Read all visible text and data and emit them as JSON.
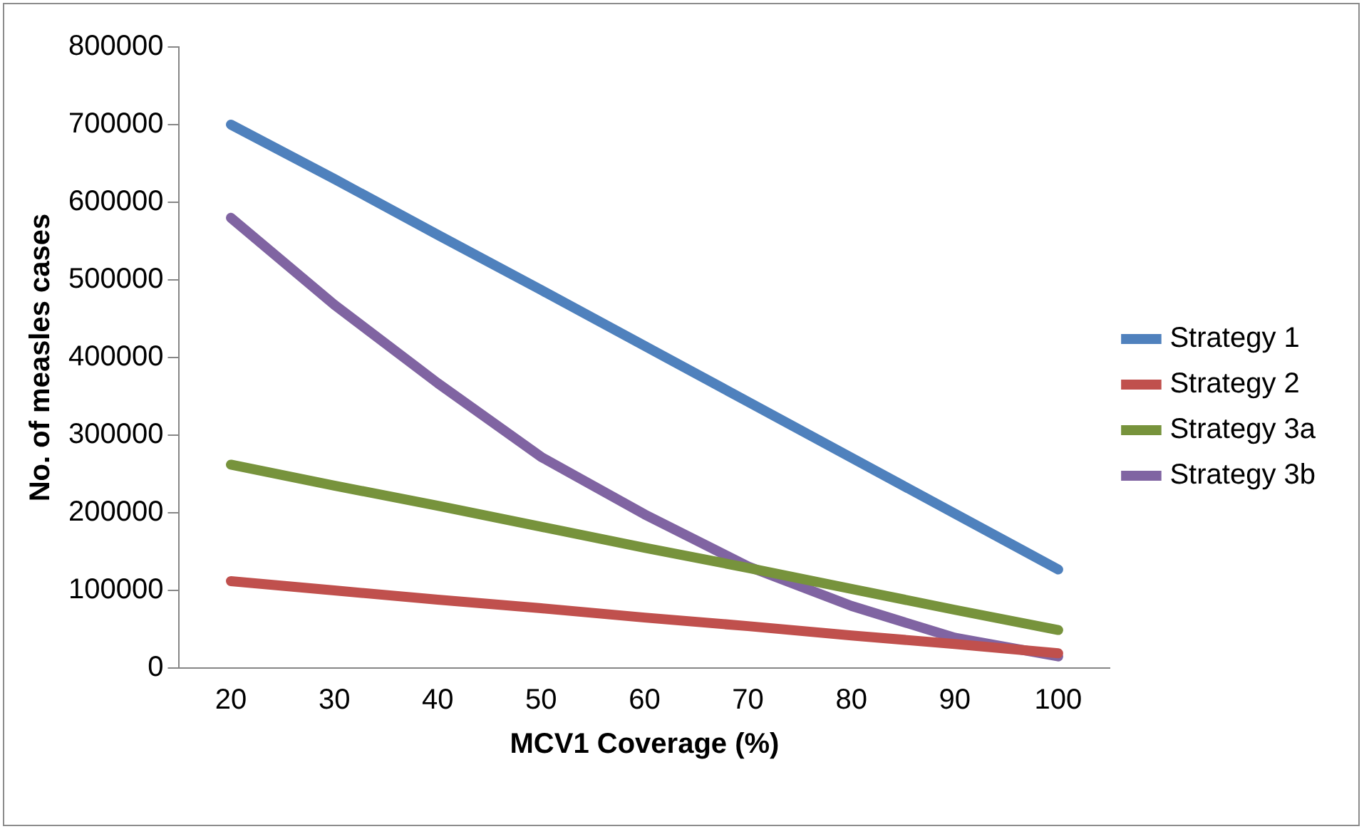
{
  "chart_data": {
    "type": "line",
    "xlabel": "MCV1 Coverage (%)",
    "ylabel": "No. of measles cases",
    "categories": [
      "20",
      "30",
      "40",
      "50",
      "60",
      "70",
      "80",
      "90",
      "100"
    ],
    "series": [
      {
        "name": "Strategy 1",
        "color": "#4f81bd",
        "values": [
          700000,
          630000,
          558000,
          487000,
          415000,
          343000,
          271000,
          199000,
          127000
        ]
      },
      {
        "name": "Strategy 2",
        "color": "#c0504d",
        "values": [
          112000,
          100000,
          88000,
          77000,
          65000,
          54000,
          42000,
          31000,
          19000
        ]
      },
      {
        "name": "Strategy 3a",
        "color": "#77933c",
        "values": [
          262000,
          235000,
          209000,
          182000,
          155000,
          129000,
          102000,
          75000,
          49000
        ]
      },
      {
        "name": "Strategy 3b",
        "color": "#8064a2",
        "values": [
          580000,
          468000,
          367000,
          272000,
          198000,
          131000,
          80000,
          39000,
          15000
        ]
      }
    ],
    "ylim": [
      0,
      800000
    ],
    "yticks": [
      0,
      100000,
      200000,
      300000,
      400000,
      500000,
      600000,
      700000,
      800000
    ],
    "grid": false,
    "legend": "right",
    "marker": "none",
    "line_style": "solid"
  }
}
